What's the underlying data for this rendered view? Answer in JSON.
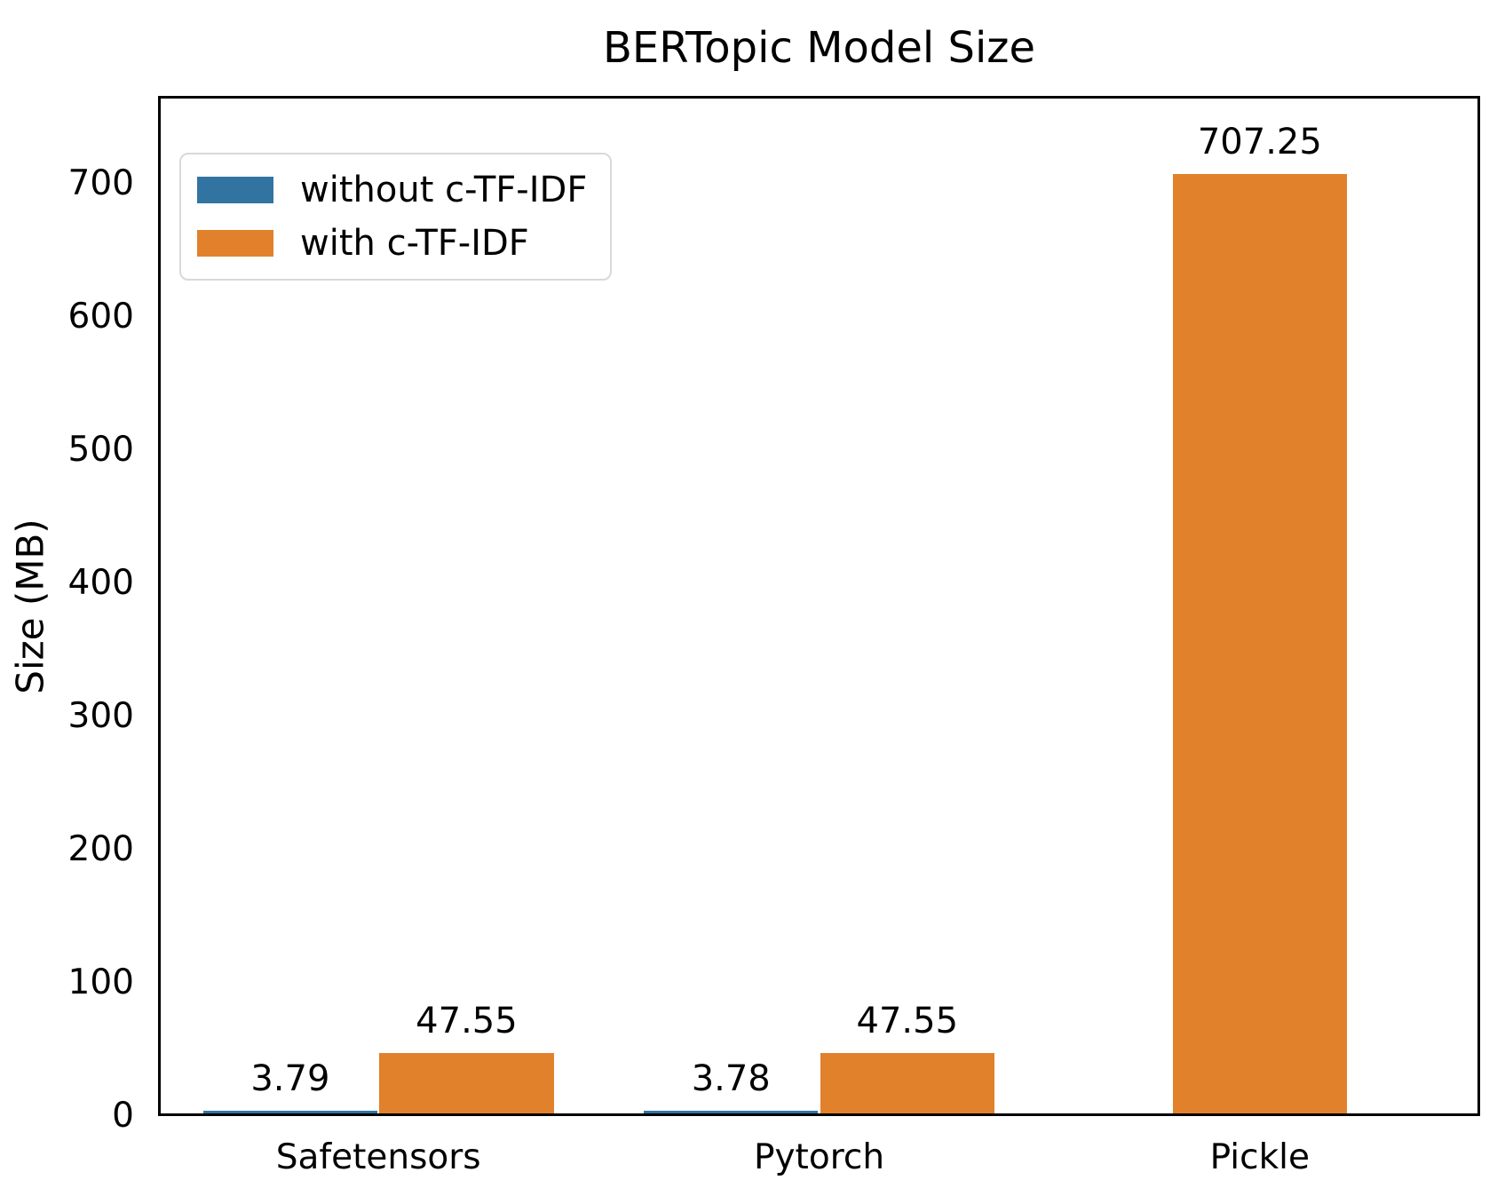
{
  "chart_data": {
    "type": "bar",
    "title": "BERTopic Model Size",
    "categories": [
      "Safetensors",
      "Pytorch",
      "Pickle"
    ],
    "series": [
      {
        "name": "without c-TF-IDF",
        "color": "#3274a1",
        "values": [
          3.79,
          3.78,
          null
        ],
        "labels": [
          "3.79",
          "3.78",
          null
        ]
      },
      {
        "name": "with c-TF-IDF",
        "color": "#e1812c",
        "values": [
          47.55,
          47.55,
          707.25
        ],
        "labels": [
          "47.55",
          "47.55",
          "707.25"
        ]
      }
    ],
    "xlabel": "",
    "ylabel": "Size (MB)",
    "ylim": [
      0,
      766
    ],
    "yticks": [
      0,
      100,
      200,
      300,
      400,
      500,
      600,
      700
    ],
    "grid": false,
    "legend_position": "upper-left",
    "bar_width_fraction": 0.4,
    "text_color": "#000000",
    "background_color": "#ffffff"
  }
}
